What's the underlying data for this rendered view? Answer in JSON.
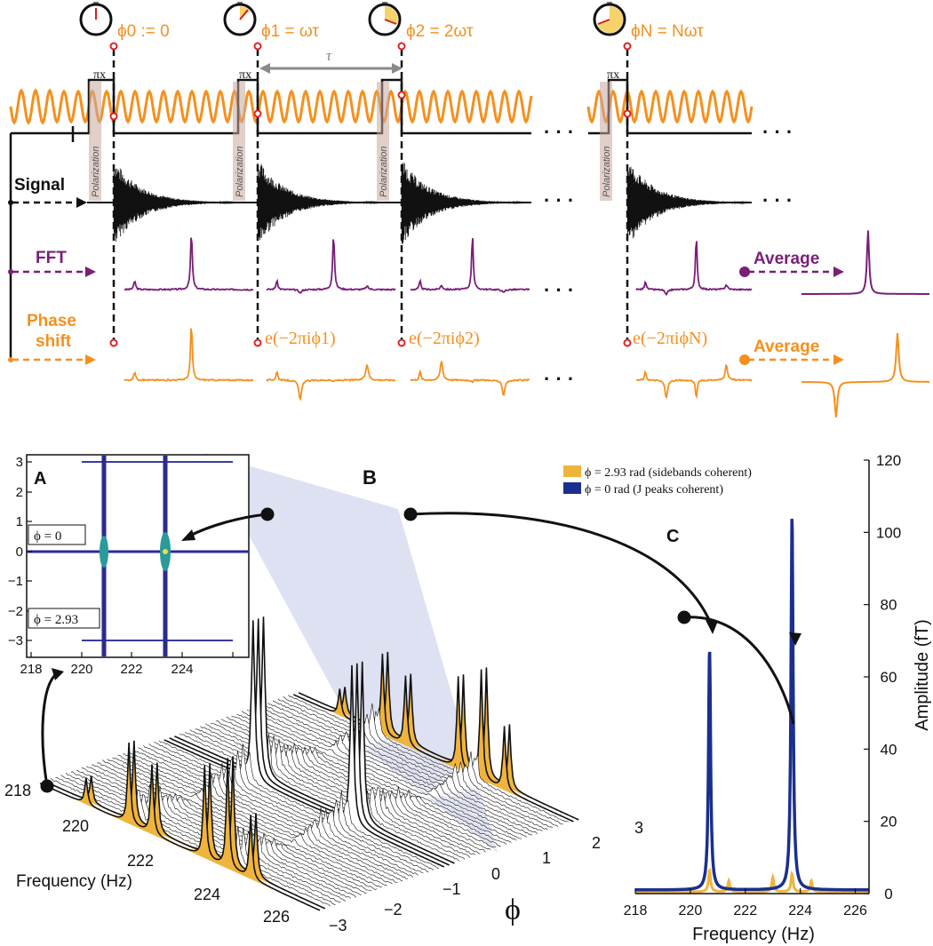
{
  "colors": {
    "orange": "#f5901e",
    "purple": "#7a1f78",
    "black": "#111111",
    "navy": "#1a2f8f",
    "gold": "#f0b43c",
    "red": "#e0201e",
    "pink": "#f4c6c0",
    "lavender": "#c8cde8",
    "grey": "#8a8a8a"
  },
  "top": {
    "clocks": [
      {
        "phase_label": "ϕ0 := 0",
        "fill_fraction": 0
      },
      {
        "phase_label": "ϕ1 = ωτ",
        "fill_fraction": 0.12
      },
      {
        "phase_label": "ϕ2 = 2ωτ",
        "fill_fraction": 0.2
      },
      {
        "phase_label": "ϕN = Nωτ",
        "fill_fraction": 0.6
      }
    ],
    "pulse_label": "πx",
    "tau_label": "τ",
    "polarization_label": "Polarization",
    "signal_label": "Signal",
    "fft_label": "FFT",
    "phase_shift_label": [
      "Phase",
      "shift"
    ],
    "average_label": "Average",
    "phase_factors": [
      "e(−2πiϕ1)",
      "e(−2πiϕ2)",
      "e(−2πiϕN)"
    ],
    "ellipsis": "· · ·"
  },
  "panelA": {
    "label": "A",
    "annotations": [
      "ϕ = 0",
      "ϕ = 2.93"
    ],
    "xticks": [
      "218",
      "220",
      "222",
      "224"
    ],
    "yticks": [
      "3",
      "2",
      "1",
      "0",
      "−1",
      "−2",
      "−3"
    ]
  },
  "panelB": {
    "label": "B",
    "xlabel": "Frequency (Hz)",
    "ylabel": "ϕ",
    "freq_ticks": [
      "218",
      "220",
      "222",
      "224",
      "226"
    ],
    "phi_ticks": [
      "−3",
      "−2",
      "−1",
      "0",
      "1",
      "2",
      "3"
    ]
  },
  "panelC": {
    "label": "C",
    "xlabel": "Frequency (Hz)",
    "ylabel": "Amplitude (fT)",
    "xticks": [
      "218",
      "220",
      "222",
      "224",
      "226"
    ],
    "yticks": [
      "0",
      "20",
      "40",
      "60",
      "80",
      "100",
      "120"
    ],
    "legend": [
      {
        "text": "ϕ = 2.93 rad  (sidebands coherent)",
        "color": "#f0b43c"
      },
      {
        "text": "ϕ = 0 rad     (J peaks coherent)",
        "color": "#1a2f8f"
      }
    ]
  },
  "chart_data": {
    "type": "line",
    "xlabel": "Frequency (Hz)",
    "ylabel": "Amplitude (fT)",
    "xlim": [
      218,
      226.5
    ],
    "ylim": [
      0,
      120
    ],
    "series": [
      {
        "name": "ϕ = 0 rad (J peaks coherent)",
        "peaks": [
          {
            "x": 220.7,
            "y": 67
          },
          {
            "x": 223.7,
            "y": 104
          }
        ],
        "baseline": 1
      },
      {
        "name": "ϕ = 2.93 rad (sidebands coherent)",
        "peaks": [
          {
            "x": 220.7,
            "y": 6
          },
          {
            "x": 221.4,
            "y": 3
          },
          {
            "x": 223.0,
            "y": 4
          },
          {
            "x": 223.7,
            "y": 5
          },
          {
            "x": 224.4,
            "y": 3
          }
        ],
        "baseline": 0.5
      }
    ]
  }
}
